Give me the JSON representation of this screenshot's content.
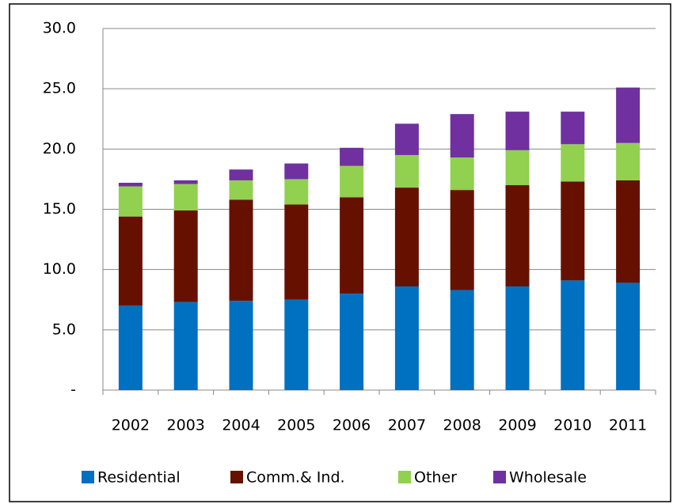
{
  "chart_data": {
    "type": "stacked_bar",
    "categories": [
      "2002",
      "2003",
      "2004",
      "2005",
      "2006",
      "2007",
      "2008",
      "2009",
      "2010",
      "2011"
    ],
    "series": [
      {
        "name": "Residential",
        "color": "#0070c0",
        "values": [
          7.0,
          7.3,
          7.4,
          7.5,
          8.0,
          8.6,
          8.3,
          8.6,
          9.1,
          8.9
        ]
      },
      {
        "name": "Comm.& Ind.",
        "color": "#661100",
        "values": [
          7.4,
          7.6,
          8.4,
          7.9,
          8.0,
          8.2,
          8.3,
          8.4,
          8.2,
          8.5
        ]
      },
      {
        "name": "Other",
        "color": "#92d050",
        "values": [
          2.5,
          2.2,
          1.6,
          2.1,
          2.6,
          2.7,
          2.7,
          2.9,
          3.1,
          3.1
        ]
      },
      {
        "name": "Wholesale",
        "color": "#7030a0",
        "values": [
          0.3,
          0.3,
          0.9,
          1.3,
          1.5,
          2.6,
          3.6,
          3.2,
          2.7,
          4.6
        ]
      }
    ],
    "ylim": [
      0,
      30
    ],
    "yticks": [
      {
        "value": 0,
        "label": "-"
      },
      {
        "value": 5,
        "label": "5.0"
      },
      {
        "value": 10,
        "label": "10.0"
      },
      {
        "value": 15,
        "label": "15.0"
      },
      {
        "value": 20,
        "label": "20.0"
      },
      {
        "value": 25,
        "label": "25.0"
      },
      {
        "value": 30,
        "label": "30.0"
      }
    ],
    "grid": true,
    "legend": "bottom"
  }
}
